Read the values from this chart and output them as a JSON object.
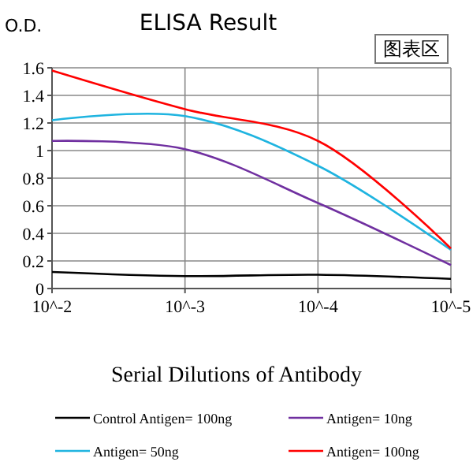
{
  "chart_data": {
    "type": "line",
    "title": "ELISA Result",
    "ylabel": "O.D.",
    "xlabel": "Serial Dilutions of Antibody",
    "categories": [
      "10^-2",
      "10^-3",
      "10^-4",
      "10^-5"
    ],
    "series": [
      {
        "name": "Control Antigen= 100ng",
        "color": "#000000",
        "values": [
          0.12,
          0.09,
          0.1,
          0.07
        ]
      },
      {
        "name": "Antigen= 10ng",
        "color": "#7030a0",
        "values": [
          1.07,
          1.01,
          0.62,
          0.17
        ]
      },
      {
        "name": "Antigen= 50ng",
        "color": "#1fb4e0",
        "values": [
          1.22,
          1.25,
          0.89,
          0.28
        ]
      },
      {
        "name": "Antigen= 100ng",
        "color": "#ff0000",
        "values": [
          1.58,
          1.3,
          1.07,
          0.29
        ]
      }
    ],
    "ylim": [
      0,
      1.6
    ],
    "yticks": [
      0,
      0.2,
      0.4,
      0.6,
      0.8,
      1,
      1.2,
      1.4,
      1.6
    ],
    "grid": true,
    "legend": "bottom",
    "marker": "none",
    "line_style": "solid",
    "annotations": [
      "图表区"
    ]
  }
}
